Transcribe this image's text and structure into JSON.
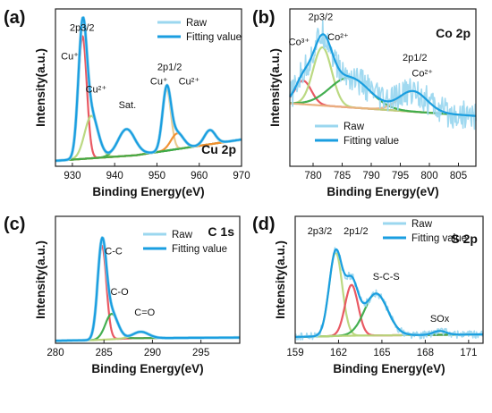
{
  "chart_data": [
    {
      "type": "line",
      "panel_label": "(a)",
      "corner_label": "Cu 2p",
      "xlabel": "Binding Energy(eV)",
      "ylabel": "Intensity(a.u.)",
      "xlim": [
        926,
        970
      ],
      "xticks": [
        930,
        940,
        950,
        960,
        970
      ],
      "legend": [
        {
          "name": "Raw",
          "color": "#9bd7ef"
        },
        {
          "name": "Fitting value",
          "color": "#1a9ee0"
        }
      ],
      "annotations": [
        {
          "text": "2p3/2",
          "x": 932.3,
          "y": 0.86
        },
        {
          "text": "Cu⁺",
          "x": 929.4,
          "y": 0.68
        },
        {
          "text": "Cu²⁺",
          "x": 935.6,
          "y": 0.47
        },
        {
          "text": "Sat.",
          "x": 943.0,
          "y": 0.37
        },
        {
          "text": "2p1/2",
          "x": 953.0,
          "y": 0.61
        },
        {
          "text": "Cu⁺",
          "x": 950.5,
          "y": 0.52
        },
        {
          "text": "Cu²⁺",
          "x": 957.6,
          "y": 0.52
        }
      ],
      "background": {
        "color": "#b9b9df",
        "points": [
          [
            926,
            0.035
          ],
          [
            945,
            0.07
          ],
          [
            970,
            0.17
          ]
        ]
      },
      "components": [
        {
          "name": "Cu⁺ 2p3/2",
          "color": "#e8505b",
          "center": 932.4,
          "width": 1.0,
          "height": 0.78
        },
        {
          "name": "Cu²⁺ 2p3/2",
          "color": "#b7d77b",
          "center": 934.5,
          "width": 1.6,
          "height": 0.27
        },
        {
          "name": "Sat.",
          "color": "#3aab48",
          "center": 942.8,
          "width": 2.0,
          "height": 0.17
        },
        {
          "name": "Cu⁺ 2p1/2",
          "color": "#e9c88b",
          "center": 952.3,
          "width": 1.0,
          "height": 0.39
        },
        {
          "name": "Cu²⁺ 2p1/2",
          "color": "#f08c2a",
          "center": 954.8,
          "width": 1.5,
          "height": 0.1
        },
        {
          "name": "Sat. 2",
          "color": "#3aab48",
          "center": 962.5,
          "width": 1.3,
          "height": 0.09
        }
      ],
      "fit_color": "#1a9ee0",
      "raw_color": "#9bd7ef",
      "noise": 0.0
    },
    {
      "type": "line",
      "panel_label": "(b)",
      "corner_label": "Co 2p",
      "xlabel": "Binding Energy(eV)",
      "ylabel": "Intensity(a.u.)",
      "xlim": [
        776,
        808
      ],
      "xticks": [
        780,
        785,
        790,
        795,
        800,
        805
      ],
      "legend": [
        {
          "name": "Raw",
          "color": "#9bd7ef"
        },
        {
          "name": "Fitting value",
          "color": "#1a9ee0"
        }
      ],
      "annotations": [
        {
          "text": "2p3/2",
          "x": 781.3,
          "y": 0.93
        },
        {
          "text": "Co³⁺",
          "x": 777.6,
          "y": 0.77
        },
        {
          "text": "Co²⁺",
          "x": 784.3,
          "y": 0.8
        },
        {
          "text": "2p1/2",
          "x": 797.5,
          "y": 0.67
        },
        {
          "text": "Co²⁺",
          "x": 798.8,
          "y": 0.57
        }
      ],
      "background": {
        "color": "#f0a06e",
        "points": [
          [
            776,
            0.4
          ],
          [
            808,
            0.32
          ]
        ]
      },
      "components": [
        {
          "name": "Co³⁺ 2p3/2",
          "color": "#e8505b",
          "center": 778.3,
          "width": 1.4,
          "height": 0.15
        },
        {
          "name": "Co²⁺ 2p3/2",
          "color": "#b7d77b",
          "center": 781.6,
          "width": 1.6,
          "height": 0.37
        },
        {
          "name": "Sat.",
          "color": "#3aab48",
          "center": 786.3,
          "width": 3.4,
          "height": 0.19
        },
        {
          "name": "Co²⁺ 2p1/2",
          "color": "#e9b27f",
          "center": 797.2,
          "width": 2.4,
          "height": 0.13
        }
      ],
      "fit_color": "#1a9ee0",
      "raw_color": "#9bd7ef",
      "noise": 0.09
    },
    {
      "type": "line",
      "panel_label": "(c)",
      "corner_label": "C 1s",
      "xlabel": "Binding Energy(eV)",
      "ylabel": "Intensity(a.u.)",
      "xlim": [
        280,
        299
      ],
      "xticks": [
        280,
        285,
        290,
        295
      ],
      "legend": [
        {
          "name": "Raw",
          "color": "#9bd7ef"
        },
        {
          "name": "Fitting value",
          "color": "#1a9ee0"
        }
      ],
      "annotations": [
        {
          "text": "C-C",
          "x": 286.0,
          "y": 0.7
        },
        {
          "text": "C-O",
          "x": 286.6,
          "y": 0.38
        },
        {
          "text": "C=O",
          "x": 289.2,
          "y": 0.22
        }
      ],
      "background": {
        "color": "#f0a06e",
        "points": [
          [
            280,
            0.02
          ],
          [
            284,
            0.025
          ],
          [
            288,
            0.04
          ],
          [
            299,
            0.045
          ]
        ]
      },
      "components": [
        {
          "name": "C-C",
          "color": "#e8505b",
          "center": 284.8,
          "width": 0.45,
          "height": 0.74
        },
        {
          "name": "C-O",
          "color": "#3aab48",
          "center": 285.8,
          "width": 0.65,
          "height": 0.2
        },
        {
          "name": "C=O",
          "color": "#b7d77b",
          "center": 288.8,
          "width": 0.8,
          "height": 0.05
        }
      ],
      "fit_color": "#1a9ee0",
      "raw_color": "#9bd7ef",
      "noise": 0.0
    },
    {
      "type": "line",
      "panel_label": "(d)",
      "corner_label": "S 2p",
      "xlabel": "Binding Energy(eV)",
      "ylabel": "Intensity(a.u.)",
      "xlim": [
        159,
        172
      ],
      "xticks": [
        159,
        162,
        165,
        168,
        171
      ],
      "legend": [
        {
          "name": "Raw",
          "color": "#9bd7ef"
        },
        {
          "name": "Fitting value",
          "color": "#1a9ee0"
        }
      ],
      "annotations": [
        {
          "text": "2p3/2",
          "x": 160.7,
          "y": 0.86
        },
        {
          "text": "2p1/2",
          "x": 163.2,
          "y": 0.86
        },
        {
          "text": "S-C-S",
          "x": 165.3,
          "y": 0.5
        },
        {
          "text": "SOx",
          "x": 169.0,
          "y": 0.17
        }
      ],
      "background": {
        "color": "#f0a06e",
        "points": [
          [
            159,
            0.05
          ],
          [
            163,
            0.06
          ],
          [
            172,
            0.07
          ]
        ]
      },
      "components": [
        {
          "name": "2p3/2",
          "color": "#b7d77b",
          "center": 161.8,
          "width": 0.45,
          "height": 0.66
        },
        {
          "name": "2p1/2",
          "color": "#e8505b",
          "center": 162.9,
          "width": 0.45,
          "height": 0.4
        },
        {
          "name": "S-C-S",
          "color": "#3aab48",
          "center": 164.6,
          "width": 0.8,
          "height": 0.33
        },
        {
          "name": "SOx",
          "color": "#b7d77b",
          "center": 169.0,
          "width": 0.45,
          "height": 0.03
        }
      ],
      "fit_color": "#1a9ee0",
      "raw_color": "#9bd7ef",
      "noise": 0.03
    }
  ]
}
